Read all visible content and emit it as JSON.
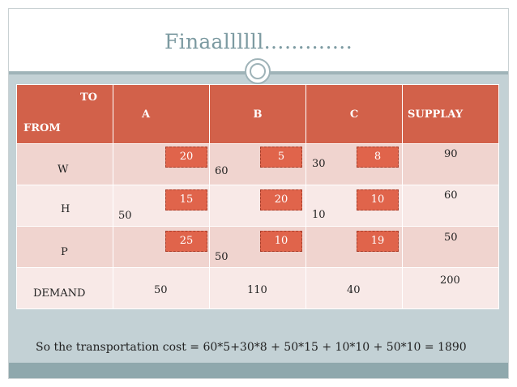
{
  "slide": {
    "title": "Finaallllll………….",
    "summary": "So the transportation cost = 60*5+30*8 + 50*15 + 10*10 + 50*10 = 1890"
  },
  "table": {
    "header": {
      "to": "TO",
      "from": "FROM",
      "a": "A",
      "b": "B",
      "c": "C",
      "supply": "SUPPLAY"
    },
    "rows": [
      {
        "label": "W",
        "cost_a": "20",
        "alloc_a": "",
        "cost_b": "5",
        "alloc_b": "60",
        "cost_c": "8",
        "alloc_c": "30",
        "supply": "90"
      },
      {
        "label": "H",
        "cost_a": "15",
        "alloc_a": "50",
        "cost_b": "20",
        "alloc_b": "",
        "cost_c": "10",
        "alloc_c": "10",
        "supply": "60"
      },
      {
        "label": "P",
        "cost_a": "25",
        "alloc_a": "",
        "cost_b": "10",
        "alloc_b": "50",
        "cost_c": "19",
        "alloc_c": "",
        "supply": "50"
      }
    ],
    "demand": {
      "label": "DEMAND",
      "a": "50",
      "b": "110",
      "c": "40",
      "total": "200"
    }
  },
  "colors": {
    "header_bg": "#d2614a",
    "cost_box": "#e0644b",
    "row_odd": "#f0d4cf",
    "row_even": "#f8e9e7",
    "title": "#7c9aa1",
    "band": "#c3d1d5"
  }
}
